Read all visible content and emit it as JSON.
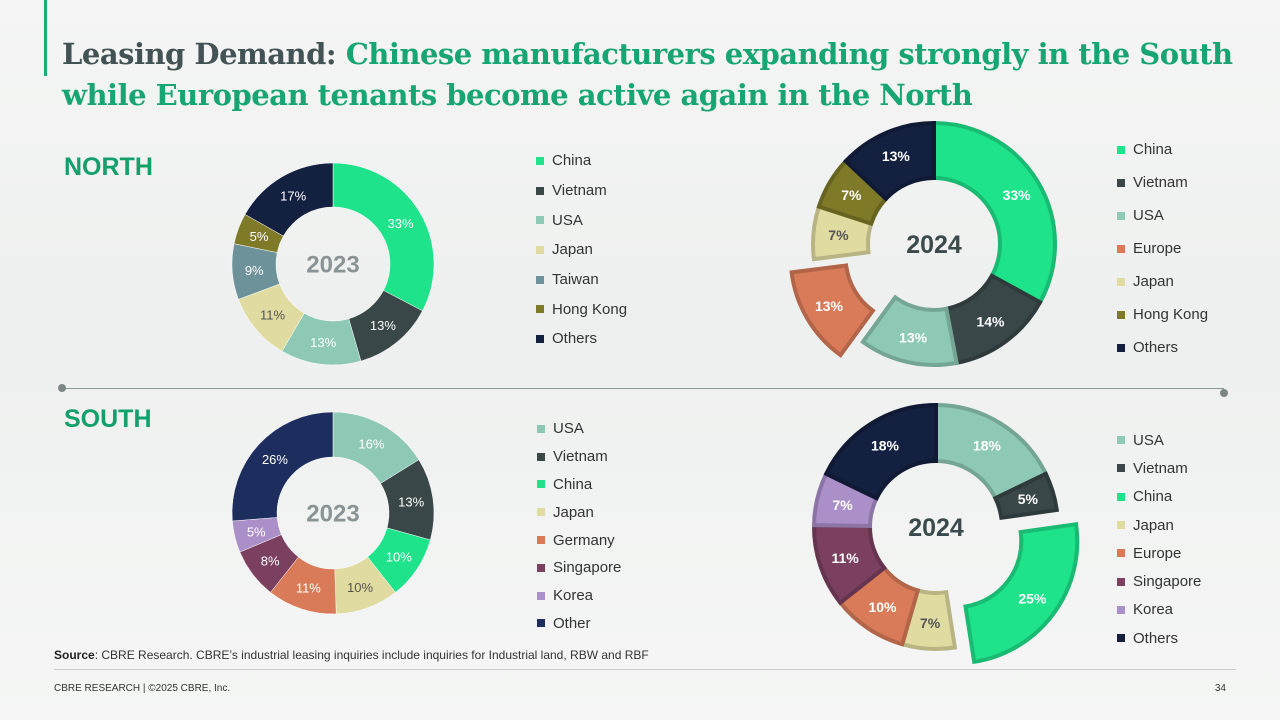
{
  "header": {
    "title_lead": "Leasing Demand:",
    "title_rest": "Chinese manufacturers expanding strongly in the South while European tenants become active again in the North"
  },
  "sections": {
    "north_label": "NORTH",
    "south_label": "SOUTH"
  },
  "colors": {
    "China": "#1ee38a",
    "Vietnam": "#394749",
    "USA": "#8ec9b6",
    "Europe": "#d97b58",
    "Japan": "#e0dba0",
    "Taiwan": "#6e929a",
    "Hong Kong": "#7e7a28",
    "Others": "#13203f",
    "Other": "#1d2d5d",
    "Germany": "#d97b58",
    "Singapore": "#7b3f60",
    "Korea": "#ab8fc9",
    "accent_green": "#17a673"
  },
  "chart_data": [
    {
      "type": "pie",
      "donut": true,
      "region": "NORTH",
      "year": "2023",
      "center_label": "2023",
      "slices": [
        {
          "label": "China",
          "value": 33,
          "text": "33%"
        },
        {
          "label": "Vietnam",
          "value": 13,
          "text": "13%"
        },
        {
          "label": "USA",
          "value": 13,
          "text": "13%"
        },
        {
          "label": "Japan",
          "value": 11,
          "text": "11%"
        },
        {
          "label": "Taiwan",
          "value": 9,
          "text": "9%"
        },
        {
          "label": "Hong Kong",
          "value": 5,
          "text": "5%"
        },
        {
          "label": "Others",
          "value": 17,
          "text": "17%"
        }
      ],
      "legend": [
        "China",
        "Vietnam",
        "USA",
        "Japan",
        "Taiwan",
        "Hong Kong",
        "Others"
      ]
    },
    {
      "type": "pie",
      "donut": true,
      "region": "NORTH",
      "year": "2024",
      "center_label": "2024",
      "slices": [
        {
          "label": "China",
          "value": 33,
          "text": "33%"
        },
        {
          "label": "Vietnam",
          "value": 14,
          "text": "14%"
        },
        {
          "label": "USA",
          "value": 13,
          "text": "13%"
        },
        {
          "label": "Europe",
          "value": 13,
          "text": "13%",
          "exploded": true
        },
        {
          "label": "Japan",
          "value": 7,
          "text": "7%"
        },
        {
          "label": "Hong Kong",
          "value": 7,
          "text": "7%"
        },
        {
          "label": "Others",
          "value": 13,
          "text": "13%"
        }
      ],
      "legend": [
        "China",
        "Vietnam",
        "USA",
        "Europe",
        "Japan",
        "Hong Kong",
        "Others"
      ]
    },
    {
      "type": "pie",
      "donut": true,
      "region": "SOUTH",
      "year": "2023",
      "center_label": "2023",
      "slices": [
        {
          "label": "USA",
          "value": 16,
          "text": "16%"
        },
        {
          "label": "Vietnam",
          "value": 13,
          "text": "13%"
        },
        {
          "label": "China",
          "value": 10,
          "text": "10%"
        },
        {
          "label": "Japan",
          "value": 10,
          "text": "10%"
        },
        {
          "label": "Germany",
          "value": 11,
          "text": "11%"
        },
        {
          "label": "Singapore",
          "value": 8,
          "text": "8%"
        },
        {
          "label": "Korea",
          "value": 5,
          "text": "5%"
        },
        {
          "label": "Other",
          "value": 26,
          "text": "26%"
        }
      ],
      "legend": [
        "USA",
        "Vietnam",
        "China",
        "Japan",
        "Germany",
        "Singapore",
        "Korea",
        "Other"
      ]
    },
    {
      "type": "pie",
      "donut": true,
      "region": "SOUTH",
      "year": "2024",
      "center_label": "2024",
      "slices": [
        {
          "label": "USA",
          "value": 18,
          "text": "18%"
        },
        {
          "label": "Vietnam",
          "value": 5,
          "text": "5%"
        },
        {
          "label": "China",
          "value": 25,
          "text": "25%",
          "exploded": true
        },
        {
          "label": "Japan",
          "value": 7,
          "text": "7%"
        },
        {
          "label": "Europe",
          "value": 10,
          "text": "10%"
        },
        {
          "label": "Singapore",
          "value": 11,
          "text": "11%"
        },
        {
          "label": "Korea",
          "value": 7,
          "text": "7%"
        },
        {
          "label": "Others",
          "value": 18,
          "text": "18%"
        }
      ],
      "legend": [
        "USA",
        "Vietnam",
        "China",
        "Japan",
        "Europe",
        "Singapore",
        "Korea",
        "Others"
      ]
    }
  ],
  "source": {
    "label": "Source",
    "text": ": CBRE Research. CBRE’s industrial leasing inquiries include inquiries for Industrial land, RBW and RBF"
  },
  "footer": {
    "left": "CBRE RESEARCH | ©2025 CBRE, Inc.",
    "page": "34"
  }
}
